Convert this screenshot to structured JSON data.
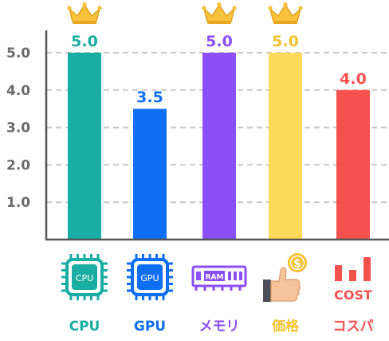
{
  "chart_data": {
    "type": "bar",
    "categories": [
      "CPU",
      "GPU",
      "メモリ",
      "価格",
      "コスパ"
    ],
    "values": [
      5.0,
      3.5,
      5.0,
      5.0,
      4.0
    ],
    "value_labels": [
      "5.0",
      "3.5",
      "5.0",
      "5.0",
      "4.0"
    ],
    "colors": [
      "#1aada3",
      "#0e6ff5",
      "#8a4ff7",
      "#ffd95a",
      "#f4514f"
    ],
    "label_colors": [
      "#1aada3",
      "#0e6ff5",
      "#8a4ff7",
      "#f2c230",
      "#f4514f"
    ],
    "icons": [
      "cpu-chip-icon",
      "gpu-chip-icon",
      "ram-stick-icon",
      "thumbs-up-coin-icon",
      "cost-bars-icon"
    ],
    "icon_text": [
      "CPU",
      "GPU",
      "RAM",
      "$",
      "COST"
    ],
    "crowned": [
      true,
      false,
      true,
      true,
      false
    ],
    "crown_icon": "crown-icon",
    "ylim": [
      0,
      5.5
    ],
    "yticks": [
      "1.0",
      "2.0",
      "3.0",
      "4.0",
      "5.0"
    ],
    "grid": true,
    "title": "",
    "xlabel": "",
    "ylabel": ""
  }
}
